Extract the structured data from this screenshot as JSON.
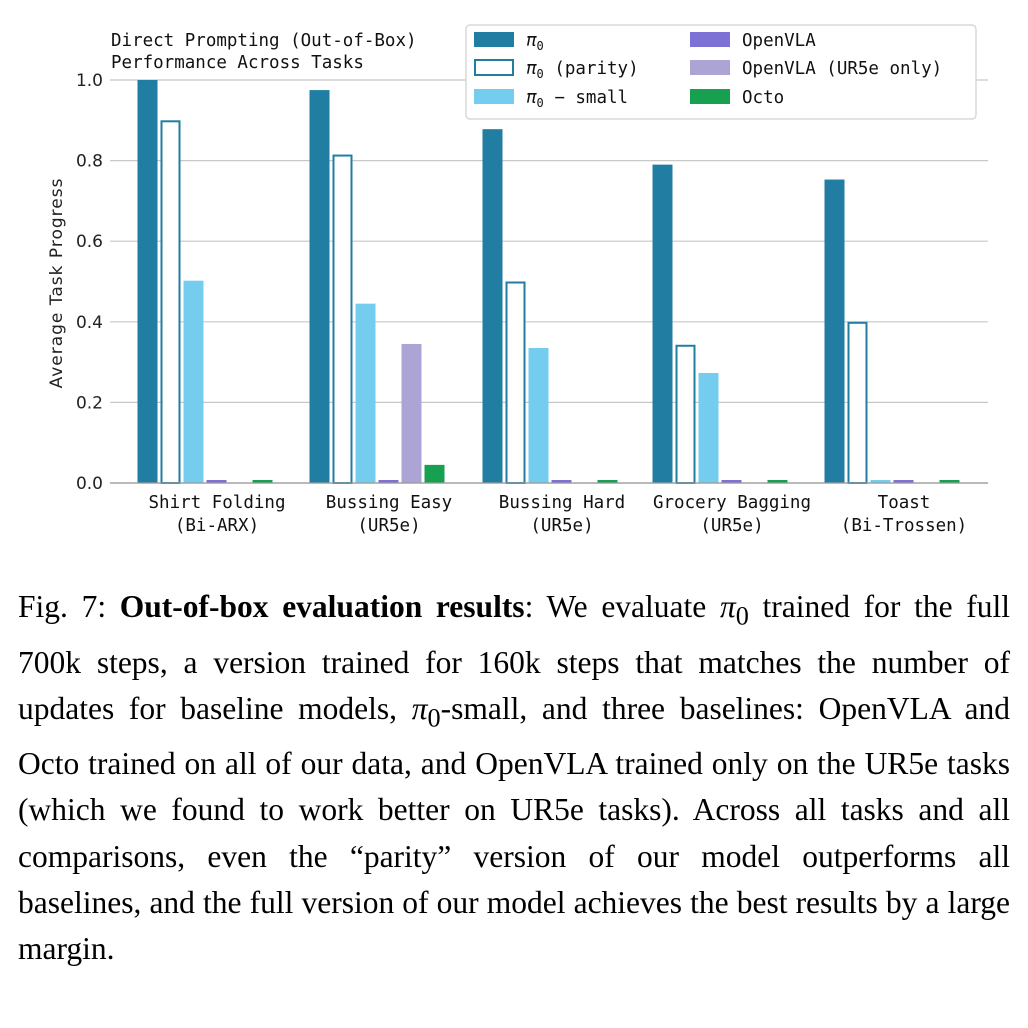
{
  "chart_data": {
    "type": "bar",
    "title": "Direct Prompting (Out-of-Box)\nPerformance Across Tasks",
    "ylabel": "Average Task Progress",
    "xlabel": "",
    "ylim": [
      0,
      1.0
    ],
    "yticks": [
      "0.0",
      "0.2",
      "0.4",
      "0.6",
      "0.8",
      "1.0"
    ],
    "grid": "horizontal",
    "legend_position": "top-right",
    "categories": [
      "Shirt Folding\n(Bi-ARX)",
      "Bussing Easy\n(UR5e)",
      "Bussing Hard\n(UR5e)",
      "Grocery Bagging\n(UR5e)",
      "Toast\n(Bi-Trossen)"
    ],
    "series": [
      {
        "name": "π0",
        "sub": "0",
        "prefix": "π",
        "suffix": "",
        "style": "filled",
        "color": "#217ea2",
        "values": [
          1.0,
          0.975,
          0.878,
          0.79,
          0.753
        ]
      },
      {
        "name": "π0 (parity)",
        "sub": "0",
        "prefix": "π",
        "suffix": " (parity)",
        "style": "outline",
        "color": "#217ea2",
        "values": [
          0.9,
          0.815,
          0.5,
          0.343,
          0.4
        ]
      },
      {
        "name": "π0 − small",
        "sub": "0",
        "prefix": "π",
        "suffix": " − small",
        "style": "filled",
        "color": "#74cdee",
        "values": [
          0.502,
          0.445,
          0.335,
          0.273,
          0.0
        ]
      },
      {
        "name": "OpenVLA",
        "style": "filled",
        "color": "#7e71d6",
        "values": [
          0.0,
          0.0,
          0.0,
          0.0,
          0.0
        ]
      },
      {
        "name": "OpenVLA (UR5e only)",
        "style": "filled",
        "color": "#ada4d6",
        "values": [
          null,
          0.345,
          null,
          null,
          null
        ]
      },
      {
        "name": "Octo",
        "style": "filled",
        "color": "#17a050",
        "values": [
          0.0,
          0.045,
          0.0,
          0.0,
          0.0
        ]
      }
    ],
    "legend_order": [
      0,
      3,
      1,
      4,
      2,
      5
    ]
  },
  "caption": {
    "label": "Fig. 7: ",
    "bold": "Out-of-box evaluation results",
    "text_1": ": We evaluate ",
    "pi": "π",
    "pi_sub": "0",
    "text_2": " trained for the full 700k steps, a version trained for 160k steps that matches the number of updates for baseline models, ",
    "text_3": "-small, and three baselines: OpenVLA and Octo trained on all of our data, and OpenVLA trained only on the UR5e tasks (which we found to work better on UR5e tasks). Across all tasks and all comparisons, even the “parity” version of our model outperforms all baselines, and the full version of our model achieves the best results by a large margin."
  }
}
